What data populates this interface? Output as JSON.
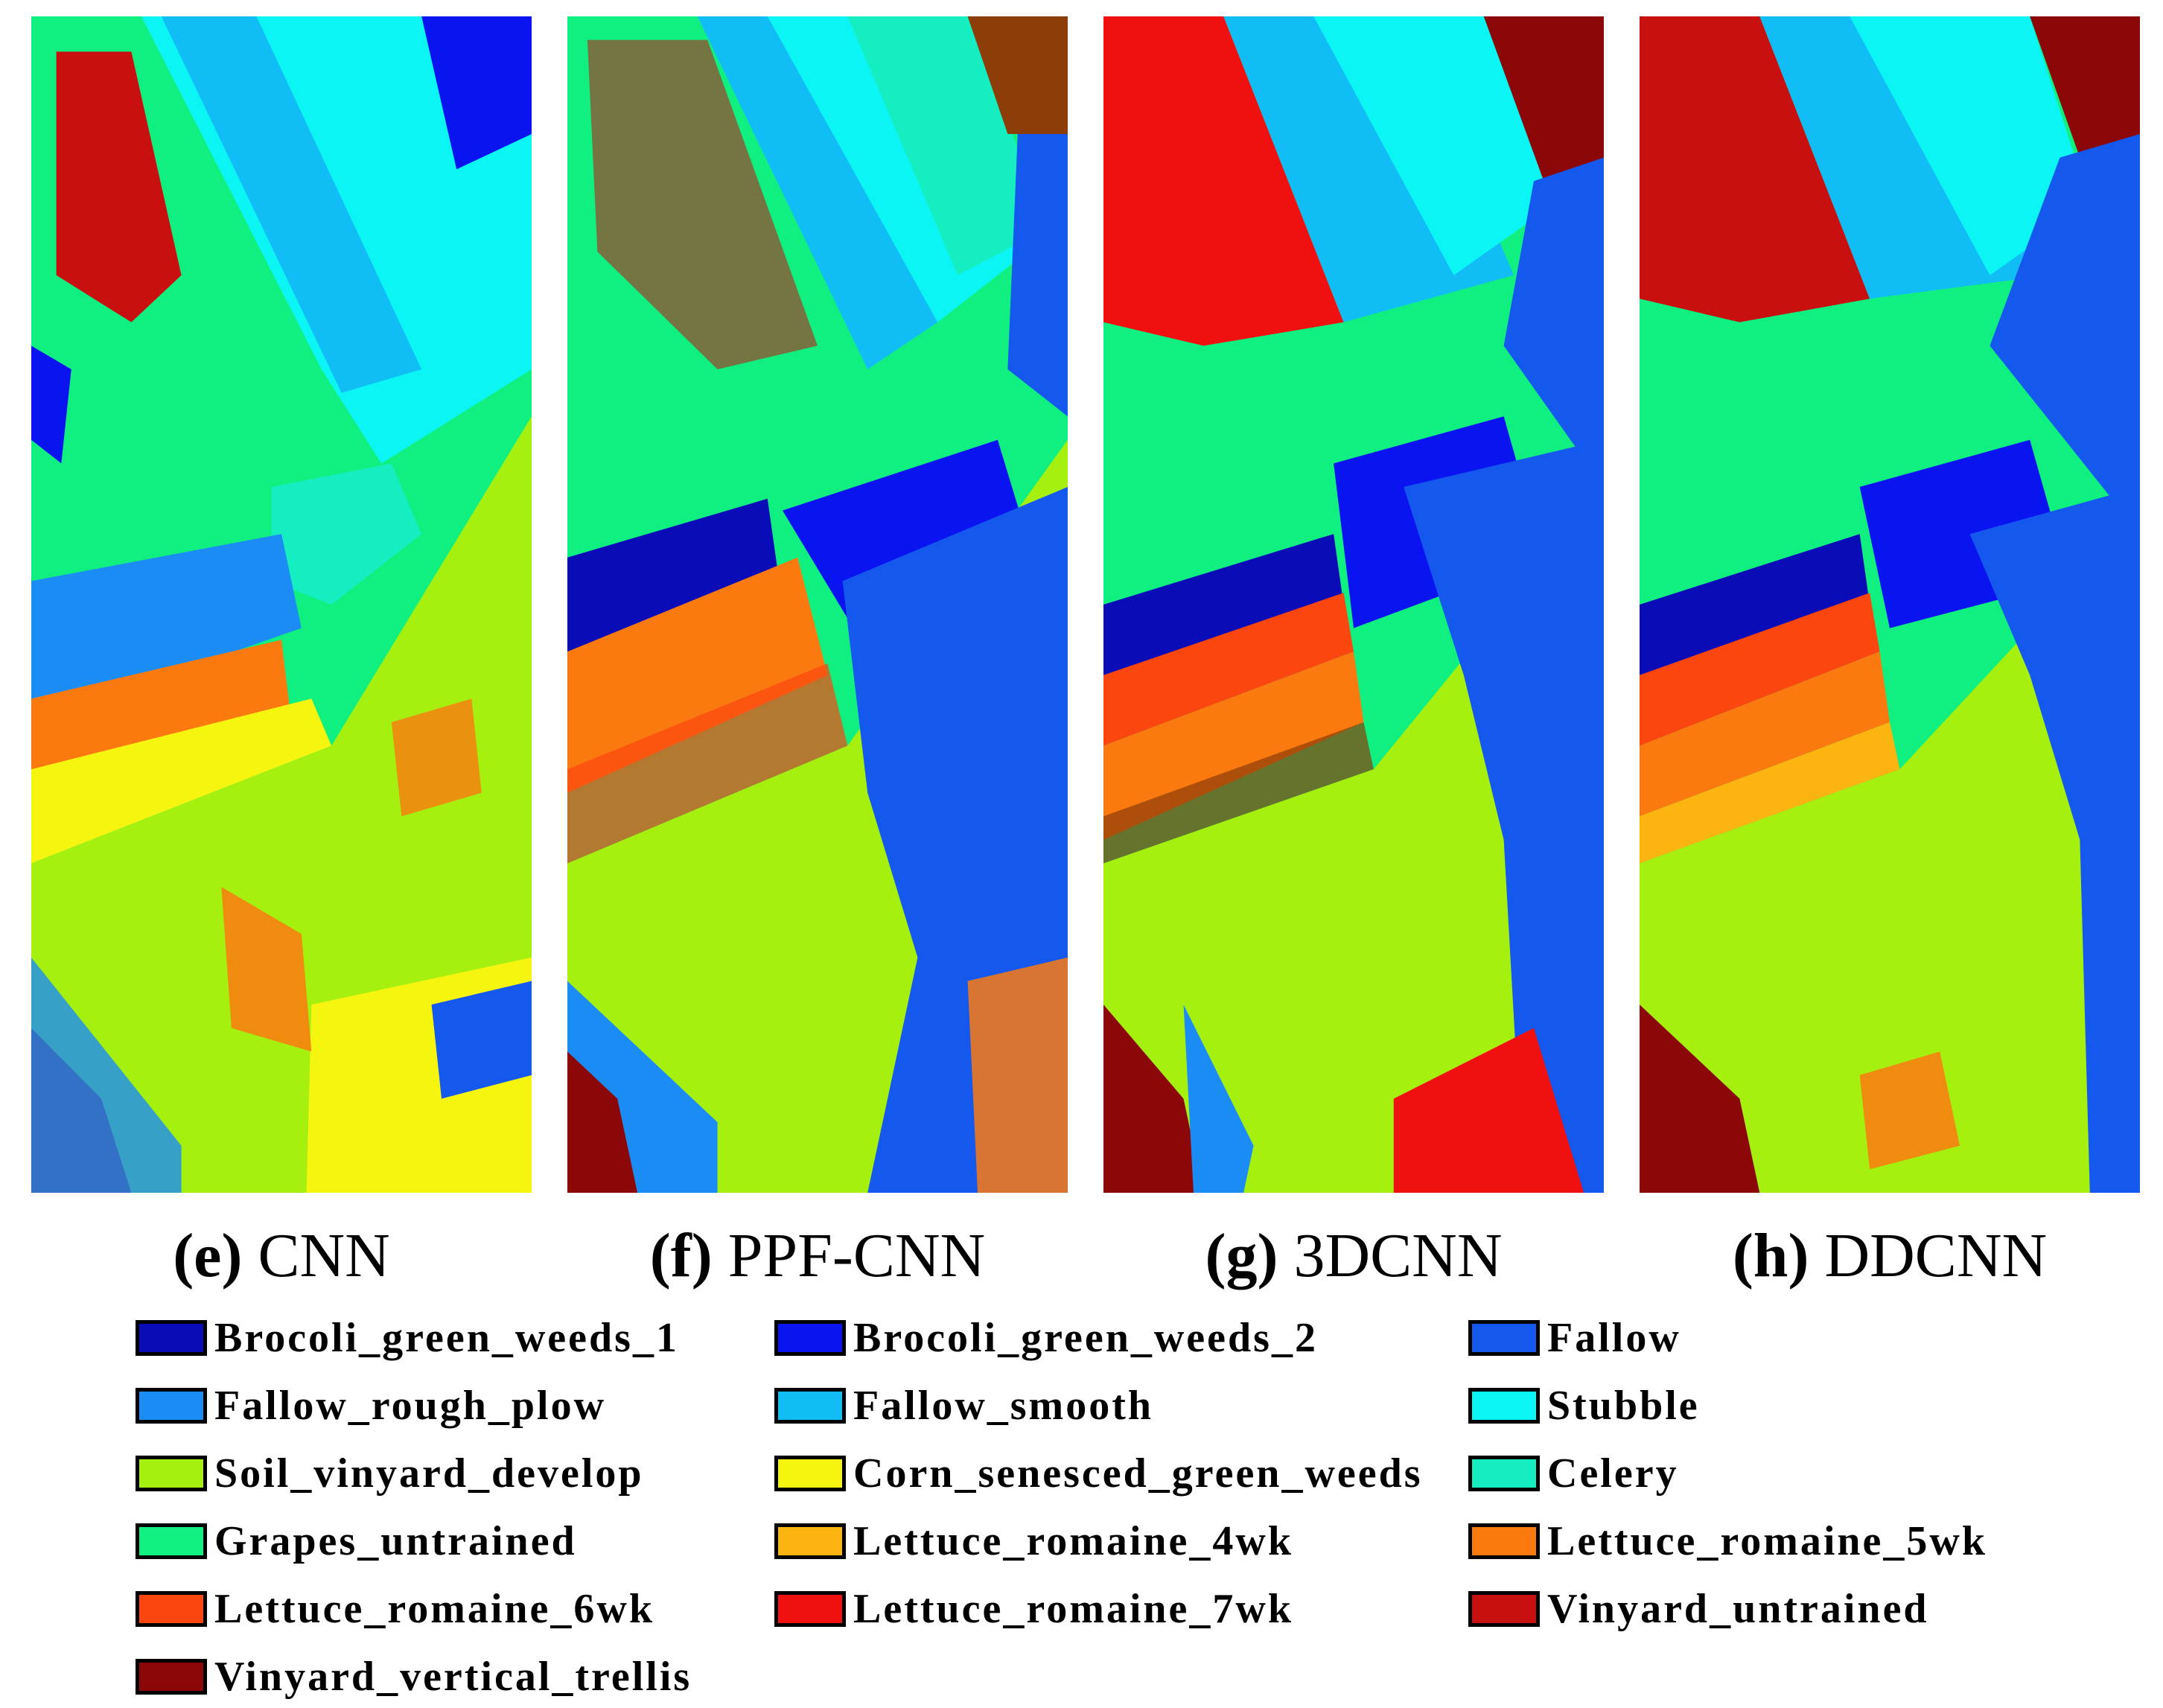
{
  "panels": [
    {
      "letter": "(e)",
      "name": "CNN"
    },
    {
      "letter": "(f)",
      "name": "PPF-CNN"
    },
    {
      "letter": "(g)",
      "name": "3DCNN"
    },
    {
      "letter": "(h)",
      "name": "DDCNN"
    }
  ],
  "legend": [
    {
      "label": "Brocoli_green_weeds_1",
      "color": "#0a0cb8"
    },
    {
      "label": "Brocoli_green_weeds_2",
      "color": "#0a14f0"
    },
    {
      "label": "Fallow",
      "color": "#1558ee"
    },
    {
      "label": "Fallow_rough_plow",
      "color": "#1c8cf5"
    },
    {
      "label": "Fallow_smooth",
      "color": "#10bef5"
    },
    {
      "label": "Stubble",
      "color": "#0cf5f5"
    },
    {
      "label": "Soil_vinyard_develop",
      "color": "#a6f010"
    },
    {
      "label": "Corn_senesced_green_weeds",
      "color": "#f5f510"
    },
    {
      "label": "Celery",
      "color": "#14eec0"
    },
    {
      "label": "Grapes_untrained",
      "color": "#10f080"
    },
    {
      "label": "Lettuce_romaine_4wk",
      "color": "#fbb410"
    },
    {
      "label": "Lettuce_romaine_5wk",
      "color": "#fb7a10"
    },
    {
      "label": "Lettuce_romaine_6wk",
      "color": "#fb4610"
    },
    {
      "label": "Lettuce_romaine_7wk",
      "color": "#f01010"
    },
    {
      "label": "Vinyard_untrained",
      "color": "#c81010"
    },
    {
      "label": "Vinyard_vertical_trellis",
      "color": "#8c0808"
    }
  ]
}
